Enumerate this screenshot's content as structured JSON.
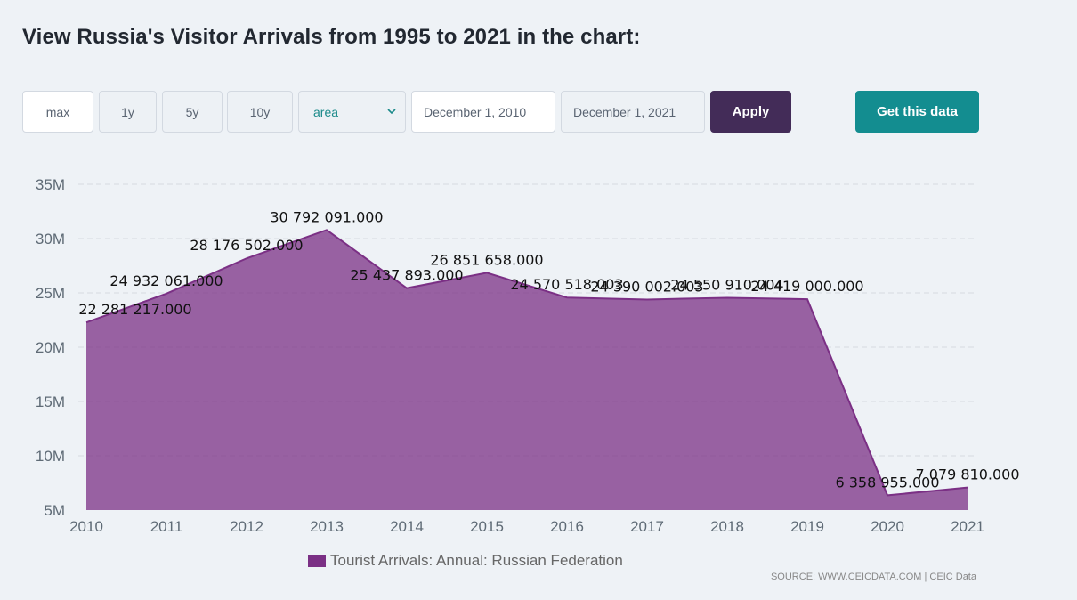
{
  "page": {
    "title": "View Russia's Visitor Arrivals from 1995 to 2021 in the chart:"
  },
  "controls": {
    "range_buttons": [
      {
        "label": "max",
        "active": true
      },
      {
        "label": "1y",
        "active": false
      },
      {
        "label": "5y",
        "active": false
      },
      {
        "label": "10y",
        "active": false
      }
    ],
    "chart_type_select": {
      "value": "area"
    },
    "start_date": {
      "value": "December 1, 2010"
    },
    "end_date": {
      "value": "December 1, 2021"
    },
    "apply_label": "Apply",
    "get_data_label": "Get this data"
  },
  "chart_data": {
    "type": "area",
    "x": [
      2010,
      2011,
      2012,
      2013,
      2014,
      2015,
      2016,
      2017,
      2018,
      2019,
      2020,
      2021
    ],
    "series": [
      {
        "name": "Tourist Arrivals: Annual: Russian Federation",
        "color": "#7b3085",
        "values": [
          22281217,
          24932061,
          28176502,
          30792091,
          25437893,
          26851658,
          24570518,
          24390002,
          24550910,
          24419000,
          6358955,
          7079810
        ],
        "labels": [
          "22 281 217.000",
          "24 932 061.000",
          "28 176 502.000",
          "30 792 091.000",
          "25 437 893.000",
          "26 851 658.000",
          "24 570 518.003",
          "24 390 002.003",
          "24 550 910.004",
          "24 419 000.000",
          "6 358 955.000",
          "7 079 810.000"
        ]
      }
    ],
    "ylim": [
      5000000,
      35000000
    ],
    "y_ticks": [
      {
        "value": 5000000,
        "label": "5M"
      },
      {
        "value": 10000000,
        "label": "10M"
      },
      {
        "value": 15000000,
        "label": "15M"
      },
      {
        "value": 20000000,
        "label": "20M"
      },
      {
        "value": 25000000,
        "label": "25M"
      },
      {
        "value": 30000000,
        "label": "30M"
      },
      {
        "value": 35000000,
        "label": "35M"
      }
    ],
    "x_tick_labels": [
      "2010",
      "2011",
      "2012",
      "2013",
      "2014",
      "2015",
      "2016",
      "2017",
      "2018",
      "2019",
      "2020",
      "2021"
    ],
    "grid": true,
    "legend_position": "bottom-center"
  },
  "source": "SOURCE: WWW.CEICDATA.COM | CEIC Data"
}
